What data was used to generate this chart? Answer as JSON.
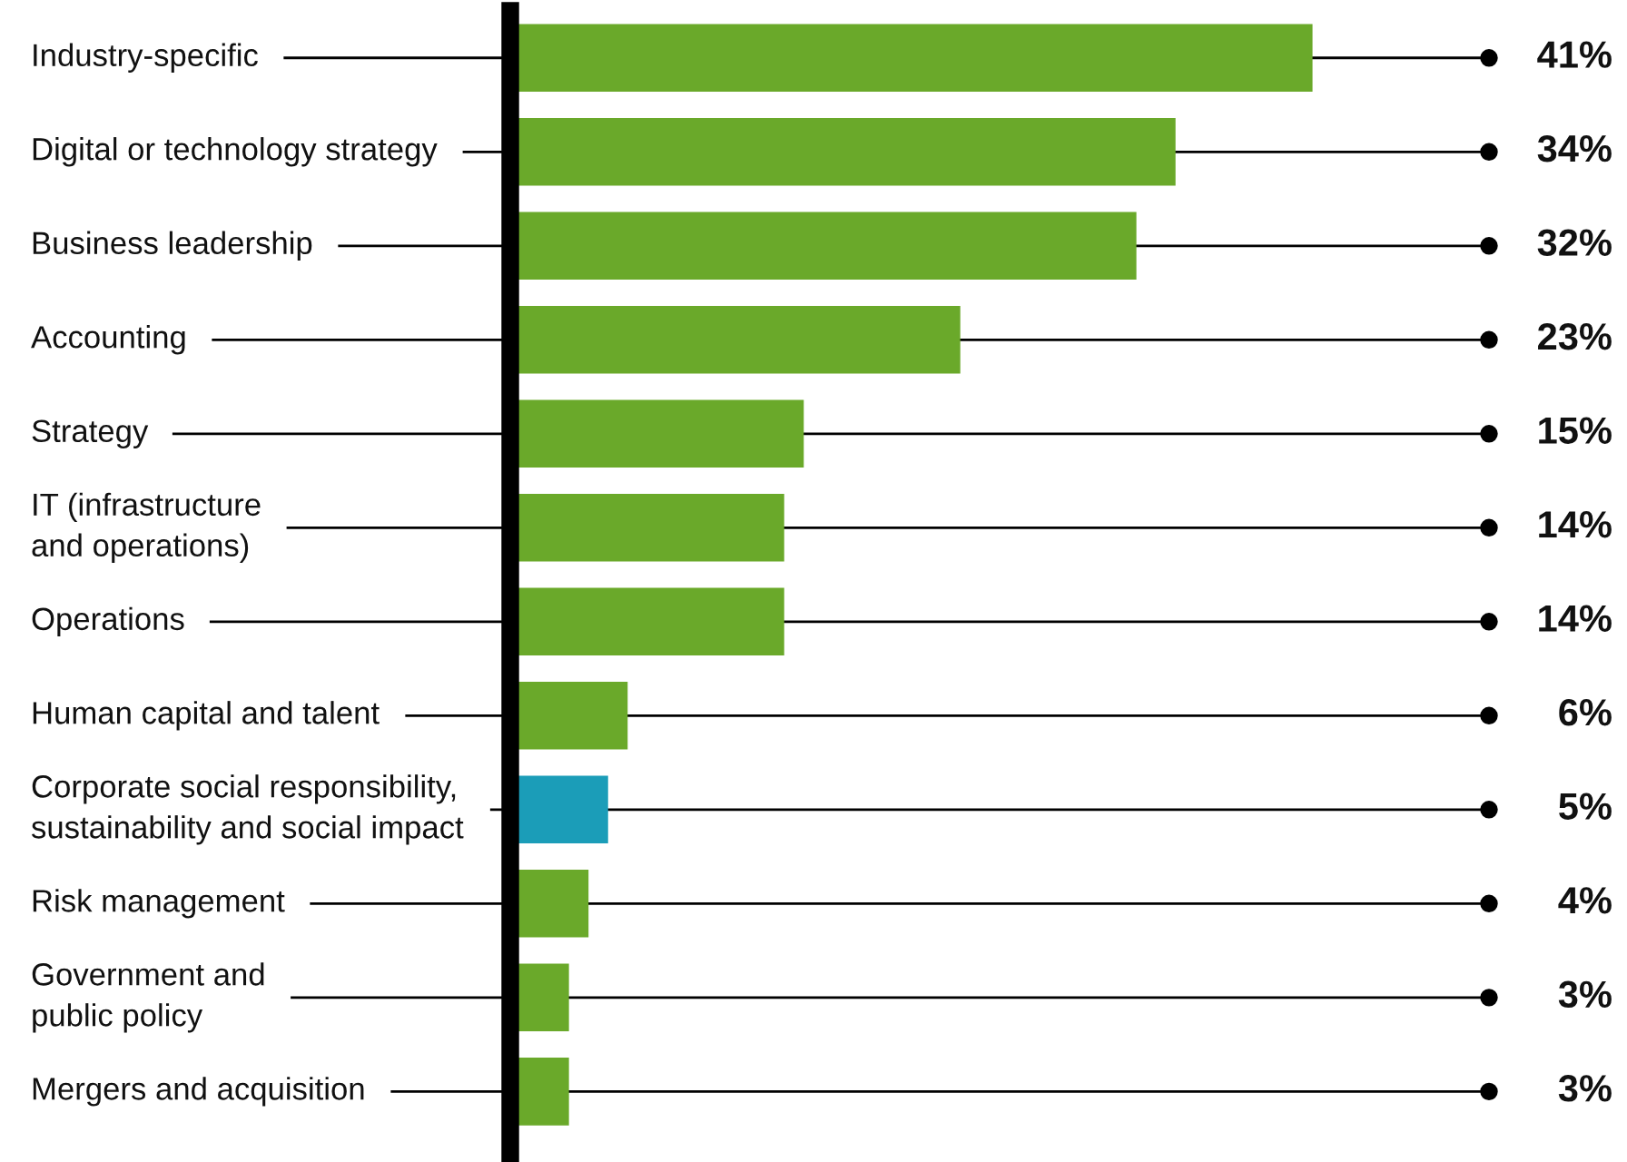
{
  "chart_data": {
    "type": "bar",
    "orientation": "horizontal",
    "categories": [
      "Industry-specific",
      "Digital or technology strategy",
      "Business leadership",
      "Accounting",
      "Strategy",
      "IT (infrastructure\nand operations)",
      "Operations",
      "Human capital and talent",
      "Corporate social responsibility,\nsustainability and social impact",
      "Risk management",
      "Government and\npublic policy",
      "Mergers and acquisition"
    ],
    "values": [
      41,
      34,
      32,
      23,
      15,
      14,
      14,
      6,
      5,
      4,
      3,
      3
    ],
    "colors": [
      "#6aa92a",
      "#6aa92a",
      "#6aa92a",
      "#6aa92a",
      "#6aa92a",
      "#6aa92a",
      "#6aa92a",
      "#6aa92a",
      "#1b9db8",
      "#6aa92a",
      "#6aa92a",
      "#6aa92a"
    ],
    "value_labels": [
      "41%",
      "34%",
      "32%",
      "23%",
      "15%",
      "14%",
      "14%",
      "6%",
      "5%",
      "4%",
      "3%",
      "3%"
    ]
  }
}
